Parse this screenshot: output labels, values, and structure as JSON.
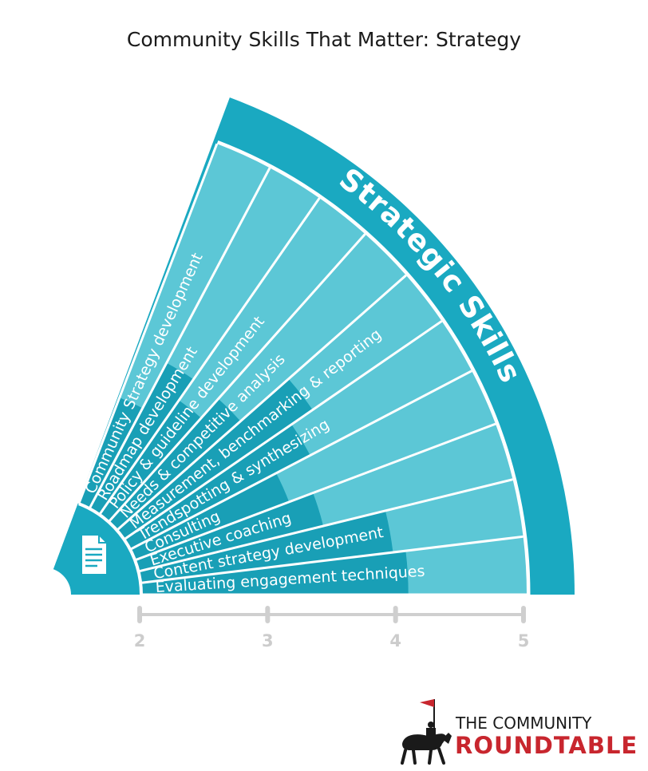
{
  "title": "Community Skills That Matter: Strategy",
  "band_label": "Strategic Skills",
  "colors": {
    "band": "#1aa9c1",
    "spoke_dark": "#199fb6",
    "spoke_light": "#5cc7d6",
    "scale": "#cfcfcf",
    "logo_red": "#c8262e"
  },
  "icons": {
    "center": "document-icon",
    "logo": "knight-on-horse-icon"
  },
  "chart_data": {
    "type": "bar",
    "layout": "radial",
    "title": "Community Skills That Matter: Strategy",
    "band_label": "Strategic Skills",
    "axis": {
      "ticks": [
        "2",
        "3",
        "4",
        "5"
      ],
      "range": [
        2,
        5
      ]
    },
    "categories": [
      "Community Strategy development",
      "Roadmap development",
      "Policy & guideline development",
      "Needs & competitive analysis",
      "Measurement, benchmarking & reporting",
      "Trendspotting & synthesizing",
      "Consulting",
      "Executive coaching",
      "Content strategy development",
      "Evaluating engagement techniques"
    ],
    "values": [
      2.9,
      3.3,
      3.1,
      3.3,
      3.8,
      3.6,
      3.3,
      3.5,
      4.0,
      4.1
    ]
  },
  "logo": {
    "line1": "THE COMMUNITY",
    "line2": "ROUNDTABLE"
  }
}
